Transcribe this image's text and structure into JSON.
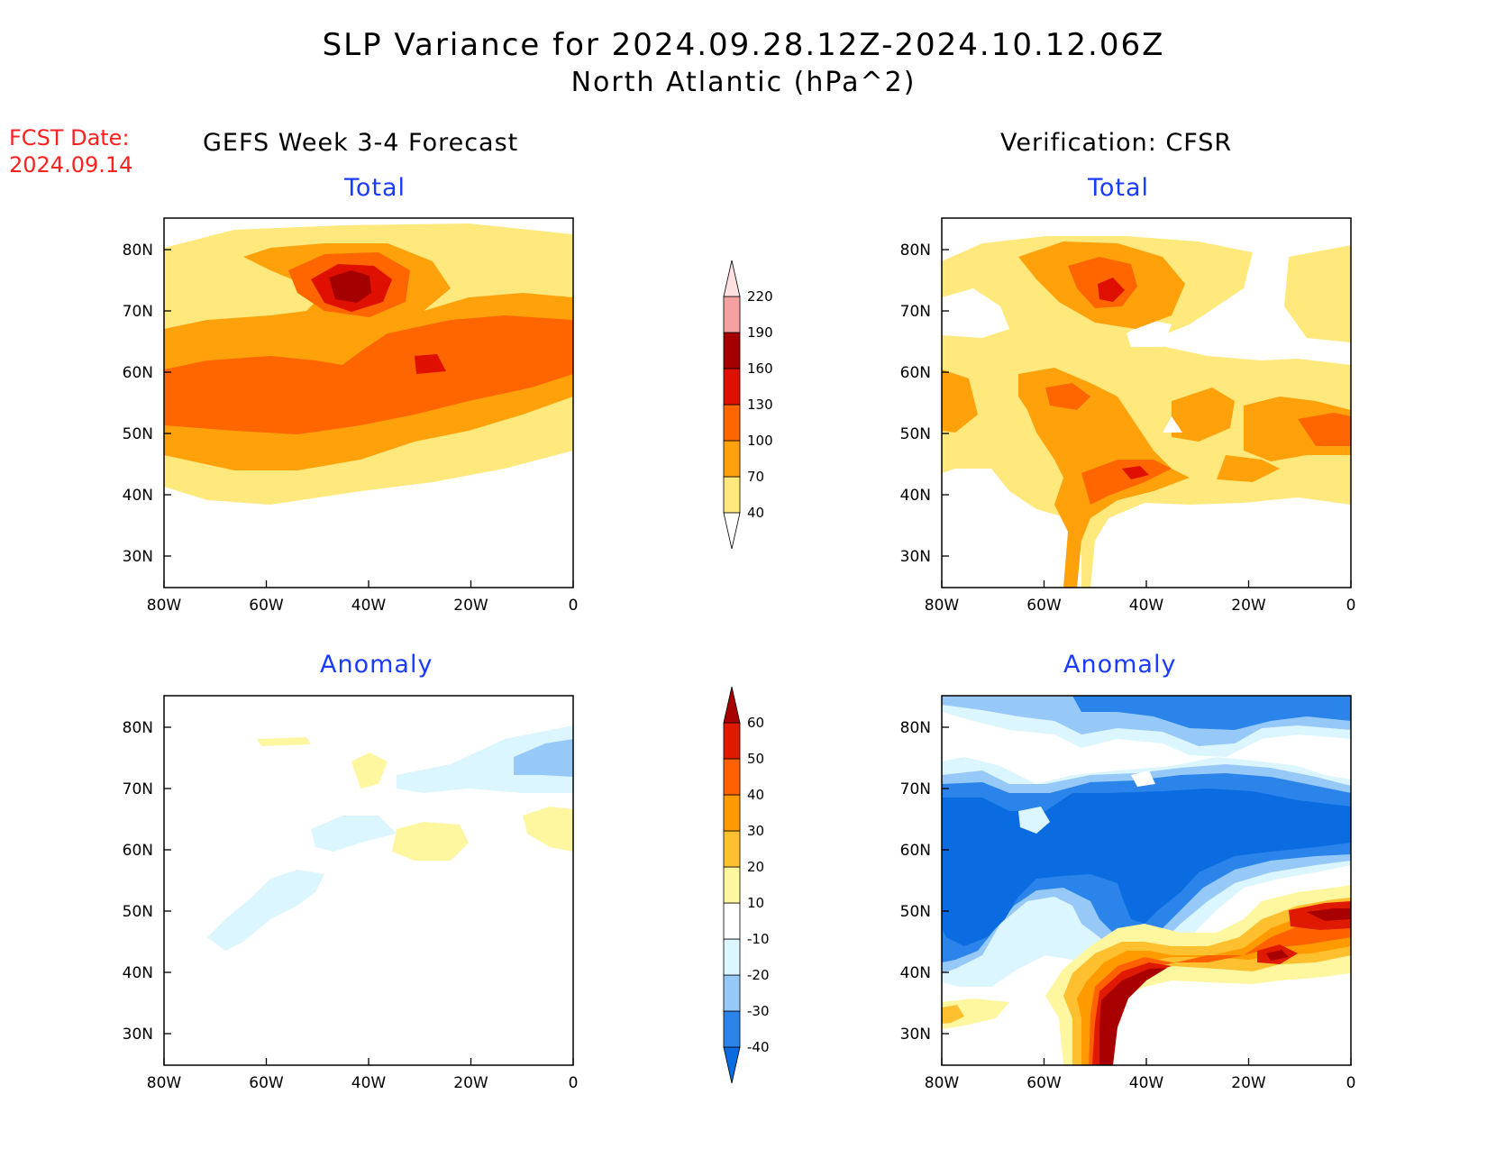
{
  "title": {
    "line1": "SLP Variance for 2024.09.28.12Z-2024.10.12.06Z",
    "line2": "North Atlantic (hPa^2)"
  },
  "fcst": {
    "label": "FCST Date:",
    "date": "2024.09.14"
  },
  "columns": {
    "left": "GEFS Week 3-4 Forecast",
    "right": "Verification: CFSR"
  },
  "panels": {
    "top_left": "Total",
    "top_right": "Total",
    "bottom_left": "Anomaly",
    "bottom_right": "Anomaly"
  },
  "axes": {
    "lat_labels": [
      "80N",
      "70N",
      "60N",
      "50N",
      "40N",
      "30N"
    ],
    "lon_labels": [
      "80W",
      "60W",
      "40W",
      "20W",
      "0"
    ]
  },
  "colorbars": {
    "total": {
      "levels": [
        "40",
        "70",
        "100",
        "130",
        "160",
        "190",
        "220"
      ],
      "colors": [
        "#ffe87c",
        "#ffa10a",
        "#ff6600",
        "#e01000",
        "#a50000",
        "#f4a0a0",
        "#fde0e0"
      ]
    },
    "anomaly": {
      "levels": [
        "-40",
        "-30",
        "-20",
        "-10",
        "10",
        "20",
        "30",
        "40",
        "50",
        "60"
      ],
      "colors": [
        "#0a6ce0",
        "#2a84ea",
        "#96c8f8",
        "#dcf6ff",
        "#ffffff",
        "#fff6a0",
        "#ffc030",
        "#ff9a00",
        "#ff6000",
        "#e01a00",
        "#a80000"
      ]
    }
  }
}
